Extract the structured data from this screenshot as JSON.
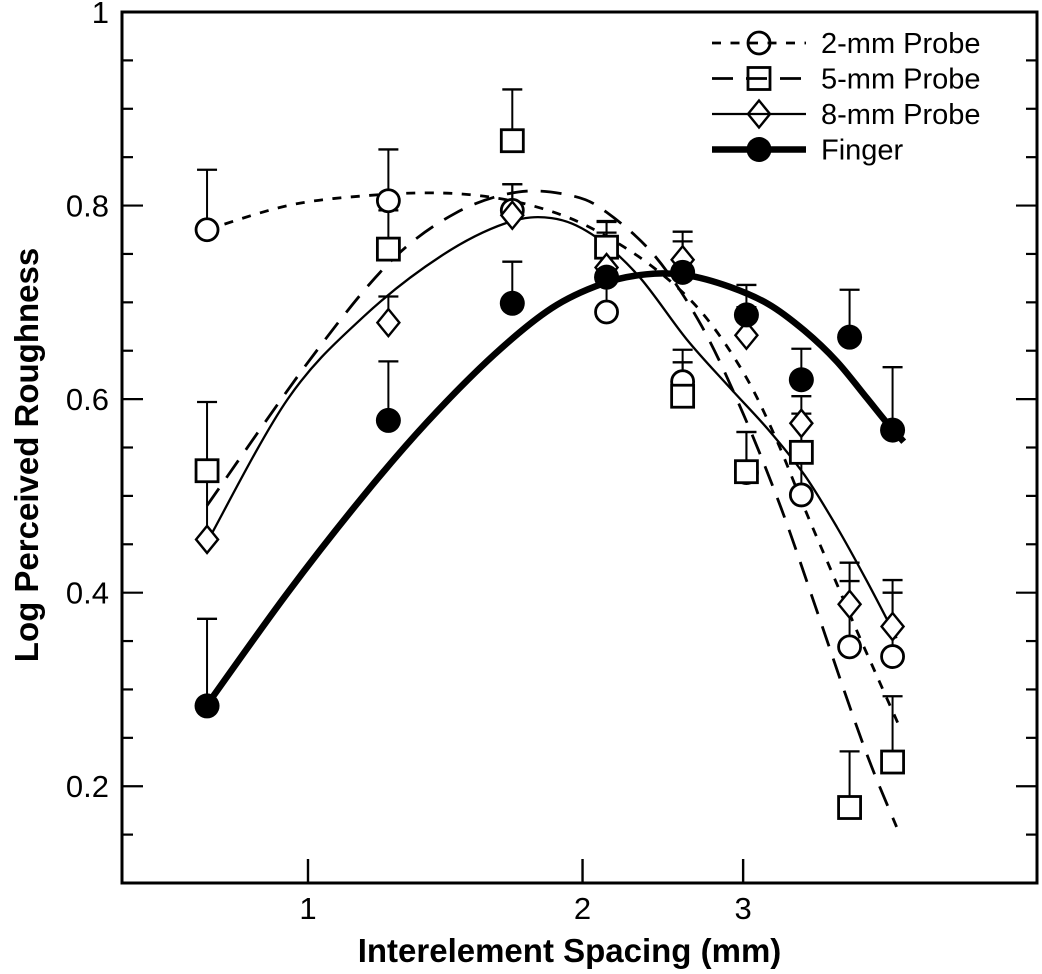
{
  "figure": {
    "background": "#ffffff",
    "ink_color": "#000000"
  },
  "chart_data": {
    "type": "scatter",
    "title": "",
    "xlabel": "Interelement Spacing (mm)",
    "ylabel": "Log Perceived Roughness",
    "x_scale": "log",
    "y_scale": "linear",
    "xlim": [
      0.625,
      6.3
    ],
    "ylim": [
      0.1,
      1.0
    ],
    "x_ticks": [
      1,
      2,
      3
    ],
    "x_tick_labels": [
      "1",
      "2",
      "3"
    ],
    "y_ticks": [
      1,
      0.8,
      0.6,
      0.4,
      0.2
    ],
    "y_tick_labels": [
      "1",
      "0.8",
      "0.6",
      "0.4",
      "0.2"
    ],
    "y_minor_step": 0.05,
    "grid": "off",
    "legend_position": "top-right",
    "x_values": [
      0.775,
      1.225,
      1.675,
      2.125,
      2.575,
      3.025,
      3.475,
      3.925,
      4.375
    ],
    "series": [
      {
        "name": "2-mm Probe",
        "marker": "open-circle",
        "line": "short-dash",
        "values": [
          0.775,
          0.805,
          0.795,
          0.69,
          0.618,
          0.524,
          0.501,
          0.344,
          0.334
        ],
        "err_upper": [
          0.837,
          0.858,
          0.822,
          0.72,
          0.651,
          0.566,
          0.535,
          0.412,
          0.4
        ],
        "fit_curve": [
          [
            0.775,
            0.775
          ],
          [
            0.95,
            0.8
          ],
          [
            1.15,
            0.81
          ],
          [
            1.4,
            0.813
          ],
          [
            1.65,
            0.806
          ],
          [
            1.9,
            0.79
          ],
          [
            2.125,
            0.768
          ],
          [
            2.4,
            0.735
          ],
          [
            2.7,
            0.69
          ],
          [
            3.0,
            0.628
          ],
          [
            3.25,
            0.562
          ],
          [
            3.5,
            0.488
          ],
          [
            3.75,
            0.422
          ],
          [
            4.0,
            0.36
          ],
          [
            4.2,
            0.315
          ],
          [
            4.45,
            0.262
          ]
        ]
      },
      {
        "name": "5-mm Probe",
        "marker": "open-square",
        "line": "long-dash",
        "values": [
          0.526,
          0.755,
          0.867,
          0.757,
          0.603,
          0.525,
          0.545,
          0.178,
          0.225
        ],
        "err_upper": [
          0.597,
          0.795,
          0.92,
          0.783,
          0.638,
          0.566,
          0.585,
          0.236,
          0.293
        ],
        "fit_curve": [
          [
            0.775,
            0.49
          ],
          [
            1.0,
            0.638
          ],
          [
            1.225,
            0.74
          ],
          [
            1.45,
            0.792
          ],
          [
            1.7,
            0.814
          ],
          [
            1.95,
            0.81
          ],
          [
            2.125,
            0.793
          ],
          [
            2.4,
            0.748
          ],
          [
            2.7,
            0.676
          ],
          [
            3.0,
            0.585
          ],
          [
            3.3,
            0.488
          ],
          [
            3.6,
            0.386
          ],
          [
            3.9,
            0.29
          ],
          [
            4.15,
            0.22
          ],
          [
            4.42,
            0.158
          ]
        ]
      },
      {
        "name": "8-mm Probe",
        "marker": "open-diamond",
        "line": "solid-thin",
        "values": [
          0.455,
          0.679,
          0.79,
          0.736,
          0.744,
          0.666,
          0.575,
          0.388,
          0.365
        ],
        "err_upper": [
          0.517,
          0.706,
          0.822,
          0.784,
          0.773,
          0.695,
          0.603,
          0.431,
          0.413
        ],
        "fit_curve": [
          [
            0.775,
            0.452
          ],
          [
            0.95,
            0.6
          ],
          [
            1.15,
            0.685
          ],
          [
            1.4,
            0.748
          ],
          [
            1.65,
            0.782
          ],
          [
            1.85,
            0.787
          ],
          [
            2.05,
            0.77
          ],
          [
            2.3,
            0.728
          ],
          [
            2.6,
            0.662
          ],
          [
            2.9,
            0.612
          ],
          [
            3.2,
            0.568
          ],
          [
            3.5,
            0.522
          ],
          [
            3.8,
            0.468
          ],
          [
            4.1,
            0.412
          ],
          [
            4.42,
            0.353
          ]
        ]
      },
      {
        "name": "Finger",
        "marker": "filled-circle",
        "line": "solid-thick",
        "values": [
          0.283,
          0.578,
          0.699,
          0.726,
          0.731,
          0.687,
          0.62,
          0.664,
          0.568
        ],
        "err_upper": [
          0.373,
          0.639,
          0.742,
          0.772,
          0.763,
          0.718,
          0.652,
          0.713,
          0.633
        ],
        "fit_curve": [
          [
            0.775,
            0.284
          ],
          [
            0.95,
            0.4
          ],
          [
            1.15,
            0.5
          ],
          [
            1.35,
            0.576
          ],
          [
            1.6,
            0.646
          ],
          [
            1.85,
            0.694
          ],
          [
            2.1,
            0.719
          ],
          [
            2.35,
            0.729
          ],
          [
            2.6,
            0.728
          ],
          [
            2.9,
            0.716
          ],
          [
            3.2,
            0.698
          ],
          [
            3.5,
            0.671
          ],
          [
            3.8,
            0.639
          ],
          [
            4.1,
            0.601
          ],
          [
            4.3,
            0.577
          ],
          [
            4.5,
            0.556
          ]
        ]
      }
    ]
  }
}
